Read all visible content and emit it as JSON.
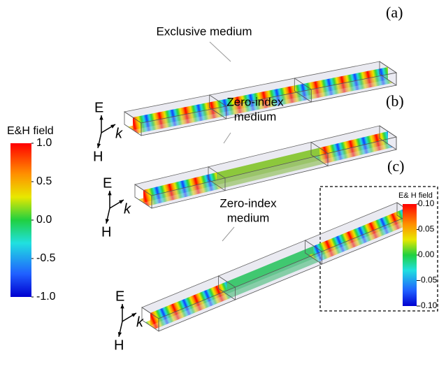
{
  "panels": [
    {
      "label": "(a)",
      "annotation": [
        "Exclusive medium"
      ],
      "axes": {
        "e": "E",
        "k": "k",
        "h": "H"
      }
    },
    {
      "label": "(b)",
      "annotation": [
        "Zero-index",
        "medium"
      ],
      "axes": {
        "e": "E",
        "k": "k",
        "h": "H"
      }
    },
    {
      "label": "(c)",
      "annotation": [
        "Zero-index",
        "medium"
      ],
      "axes": {
        "e": "E",
        "k": "k",
        "h": "H"
      }
    }
  ],
  "colorbars": [
    {
      "title": "E&H field",
      "ticks": [
        {
          "value": 1,
          "label": "1.0"
        },
        {
          "value": 0.5,
          "label": "0.5"
        },
        {
          "value": 0,
          "label": "0.0"
        },
        {
          "value": -0.5,
          "label": "-0.5"
        },
        {
          "value": -1,
          "label": "-1.0"
        }
      ]
    },
    {
      "title": "E& H field",
      "ticks": [
        {
          "value": 0.1,
          "label": "0.10"
        },
        {
          "value": 0.05,
          "label": "0.05"
        },
        {
          "value": 0,
          "label": "0.00"
        },
        {
          "value": -0.05,
          "label": "-0.05"
        },
        {
          "value": -0.1,
          "label": "-0.10"
        }
      ]
    }
  ]
}
